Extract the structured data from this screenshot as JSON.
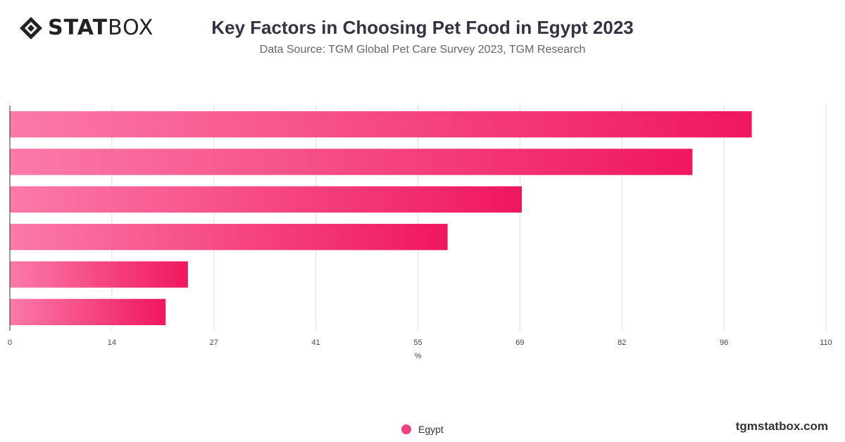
{
  "brand": {
    "logo_bold": "STAT",
    "logo_light": "BOX",
    "logo_icon": "diamond-logo-icon",
    "site": "tgmstatbox.com"
  },
  "colors": {
    "bar_start": "#fb7aa9",
    "bar_end": "#f0175f",
    "legend_dot": "#f0407f",
    "grid": "#dddddd",
    "axis": "#333333",
    "tick_text": "#444444"
  },
  "chart_data": {
    "type": "bar",
    "orientation": "horizontal",
    "title": "Key Factors in Choosing Pet Food in Egypt 2023",
    "subtitle": "Data Source: TGM Global Pet Care Survey 2023, TGM Research",
    "xlabel": "%",
    "ylabel": "",
    "xlim": [
      0,
      110
    ],
    "xticks": [
      "0",
      "14",
      "27",
      "41",
      "55",
      "69",
      "82",
      "96",
      "110"
    ],
    "categories": [
      "",
      "",
      "",
      "",
      "",
      ""
    ],
    "series": [
      {
        "name": "Egypt",
        "values": [
          100,
          92,
          69,
          59,
          24,
          21
        ]
      }
    ],
    "grid": true,
    "legend_position": "bottom"
  }
}
